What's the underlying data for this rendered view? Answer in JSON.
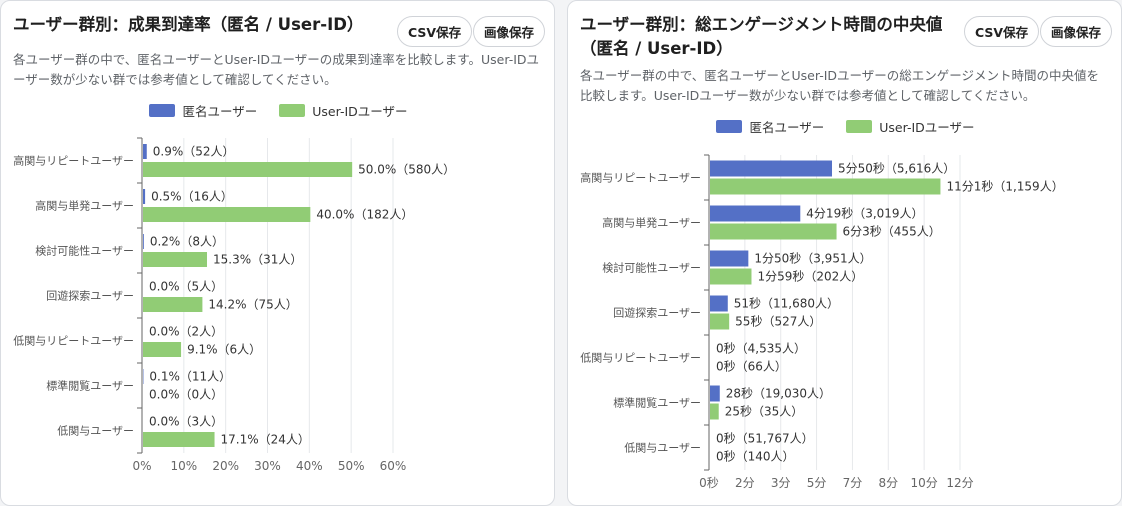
{
  "colors": {
    "anonymous": "#5470c6",
    "userid": "#91cc75"
  },
  "legend": {
    "anonymous": "匿名ユーザー",
    "userid": "User-IDユーザー"
  },
  "cards": [
    {
      "title": "ユーザー群別：成果到達率（匿名 / User-ID）",
      "csv_button": "CSV保存",
      "image_button": "画像保存",
      "description": "各ユーザー群の中で、匿名ユーザーとUser-IDユーザーの成果到達率を比較します。User-IDユーザー数が少ない群では参考値として確認してください。"
    },
    {
      "title": "ユーザー群別：総エンゲージメント時間の中央値（匿名 / User-ID）",
      "csv_button": "CSV保存",
      "image_button": "画像保存",
      "description": "各ユーザー群の中で、匿名ユーザーとUser-IDユーザーの総エンゲージメント時間の中央値を比較します。User-IDユーザー数が少ない群では参考値として確認してください。"
    }
  ],
  "chart_data": [
    {
      "type": "bar",
      "orientation": "horizontal",
      "categories": [
        "高関与リピートユーザー",
        "高関与単発ユーザー",
        "検討可能性ユーザー",
        "回遊探索ユーザー",
        "低関与リピートユーザー",
        "標準閲覧ユーザー",
        "低関与ユーザー"
      ],
      "xlim": [
        0,
        60
      ],
      "xticks": [
        "0%",
        "10%",
        "20%",
        "30%",
        "40%",
        "50%",
        "60%"
      ],
      "grid": true,
      "legend_position": "top-center",
      "series": [
        {
          "name": "匿名ユーザー",
          "values": [
            0.9,
            0.5,
            0.2,
            0.0,
            0.0,
            0.1,
            0.0
          ],
          "labels": [
            "0.9%（52人）",
            "0.5%（16人）",
            "0.2%（8人）",
            "0.0%（5人）",
            "0.0%（2人）",
            "0.1%（11人）",
            "0.0%（3人）"
          ]
        },
        {
          "name": "User-IDユーザー",
          "values": [
            50.0,
            40.0,
            15.3,
            14.2,
            9.1,
            0.0,
            17.1
          ],
          "labels": [
            "50.0%（580人）",
            "40.0%（182人）",
            "15.3%（31人）",
            "14.2%（75人）",
            "9.1%（6人）",
            "0.0%（0人）",
            "17.1%（24人）"
          ]
        }
      ]
    },
    {
      "type": "bar",
      "orientation": "horizontal",
      "categories": [
        "高関与リピートユーザー",
        "高関与単発ユーザー",
        "検討可能性ユーザー",
        "回遊探索ユーザー",
        "低関与リピートユーザー",
        "標準閲覧ユーザー",
        "低関与ユーザー"
      ],
      "xlim": [
        0,
        12
      ],
      "xticks": [
        "0秒",
        "2分",
        "3分",
        "5分",
        "7分",
        "8分",
        "10分",
        "12分"
      ],
      "grid": true,
      "legend_position": "top-center",
      "series": [
        {
          "name": "匿名ユーザー",
          "values": [
            5.833,
            4.317,
            1.833,
            0.85,
            0,
            0.467,
            0
          ],
          "labels": [
            "5分50秒（5,616人）",
            "4分19秒（3,019人）",
            "1分50秒（3,951人）",
            "51秒（11,680人）",
            "0秒（4,535人）",
            "28秒（19,030人）",
            "0秒（51,767人）"
          ]
        },
        {
          "name": "User-IDユーザー",
          "values": [
            11.017,
            6.05,
            1.983,
            0.917,
            0,
            0.417,
            0
          ],
          "labels": [
            "11分1秒（1,159人）",
            "6分3秒（455人）",
            "1分59秒（202人）",
            "55秒（527人）",
            "0秒（66人）",
            "25秒（35人）",
            "0秒（140人）"
          ]
        }
      ]
    }
  ]
}
